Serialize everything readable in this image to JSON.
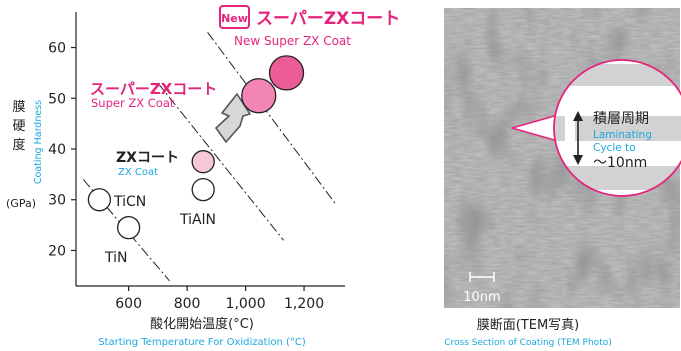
{
  "chart_data": {
    "type": "scatter",
    "xlabel_jp": "酸化開始温度(°C)",
    "xlabel_en": "Starting Temperature For Oxidization (°C)",
    "ylabel_jp": [
      "膜",
      "硬",
      "度"
    ],
    "ylabel_unit": "(GPa)",
    "ylabel_en": "Coating Hardness",
    "x_ticks": [
      "600",
      "800",
      "1,000",
      "1,200"
    ],
    "x_tick_values": [
      600,
      800,
      1000,
      1200
    ],
    "y_ticks": [
      "20",
      "30",
      "40",
      "50",
      "60"
    ],
    "y_tick_values": [
      20,
      30,
      40,
      50,
      60
    ],
    "xlim": [
      420,
      1340
    ],
    "ylim": [
      13,
      67
    ],
    "grid": false,
    "points": [
      {
        "x": 500,
        "y": 30,
        "label": "TiCN",
        "style": "open"
      },
      {
        "x": 600,
        "y": 24.5,
        "label": "TiN",
        "style": "open"
      },
      {
        "x": 855,
        "y": 32,
        "label": "TiAlN",
        "style": "open"
      },
      {
        "x": 855,
        "y": 37.5,
        "label": "ZXコート",
        "sublabel": "ZX Coat",
        "style": "light"
      },
      {
        "x": 1045,
        "y": 50.5,
        "label": "スーパーZXコート",
        "sublabel": "Super ZX Coat",
        "style": "medium"
      },
      {
        "x": 1140,
        "y": 55,
        "label": "スーパーZXコート",
        "sublabel": "New Super ZX Coat",
        "badge": "New",
        "style": "strong"
      }
    ],
    "trend_lines": [
      {
        "from": [
          445,
          34
        ],
        "to": [
          740,
          14
        ]
      },
      {
        "from": [
          700,
          53
        ],
        "to": [
          1130,
          22
        ]
      },
      {
        "from": [
          870,
          63
        ],
        "to": [
          1310,
          29
        ]
      }
    ]
  },
  "labels": {
    "ticn": "TiCN",
    "tin": "TiN",
    "tialn": "TiAlN",
    "zx_jp": "ZXコート",
    "zx_en": "ZX Coat",
    "super_jp": "スーパーZXコート",
    "super_en": "Super ZX Coat",
    "new_badge": "New",
    "new_jp": "スーパーZXコート",
    "new_en": "New Super ZX Coat"
  },
  "tem": {
    "scale_label": "10nm",
    "caption_jp": "膜断面(TEM写真)",
    "caption_en": "Cross Section of Coating (TEM Photo)",
    "callout_jp": "積層周期",
    "callout_en_1": "Laminating",
    "callout_en_2": "Cycle to",
    "callout_value": "～10nm"
  },
  "colors": {
    "pink": "#e4247c",
    "cyan": "#1aa8e0",
    "fill_light": "#f7c7da",
    "fill_medium": "#f285b4",
    "fill_strong": "#ec5d98",
    "arrow_fill": "#d7d7d7"
  }
}
